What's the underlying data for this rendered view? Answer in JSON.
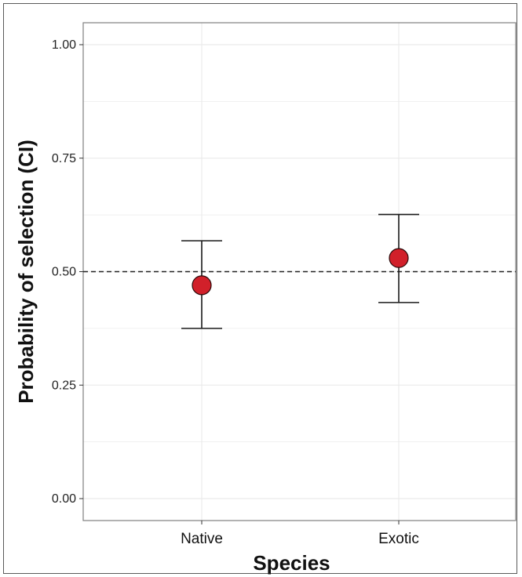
{
  "chart_data": {
    "type": "scatter",
    "xlabel": "Species",
    "ylabel": "Probability of selection (CI)",
    "categories": [
      "Native",
      "Exotic"
    ],
    "series": [
      {
        "points": [
          {
            "x": "Native",
            "y": 0.47,
            "lower": 0.375,
            "upper": 0.568
          },
          {
            "x": "Exotic",
            "y": 0.53,
            "lower": 0.432,
            "upper": 0.626
          }
        ]
      }
    ],
    "ylim": [
      0.0,
      1.0
    ],
    "yticks": [
      "0.00",
      "0.25",
      "0.50",
      "0.75",
      "1.00"
    ],
    "reference_line": {
      "y": 0.5,
      "style": "dashed"
    },
    "grid": true,
    "colors": {
      "point_fill": "#d1202a",
      "point_stroke": "#2a0a0a",
      "panel_border": "#7f7f7f",
      "grid": "#ebebeb"
    }
  }
}
